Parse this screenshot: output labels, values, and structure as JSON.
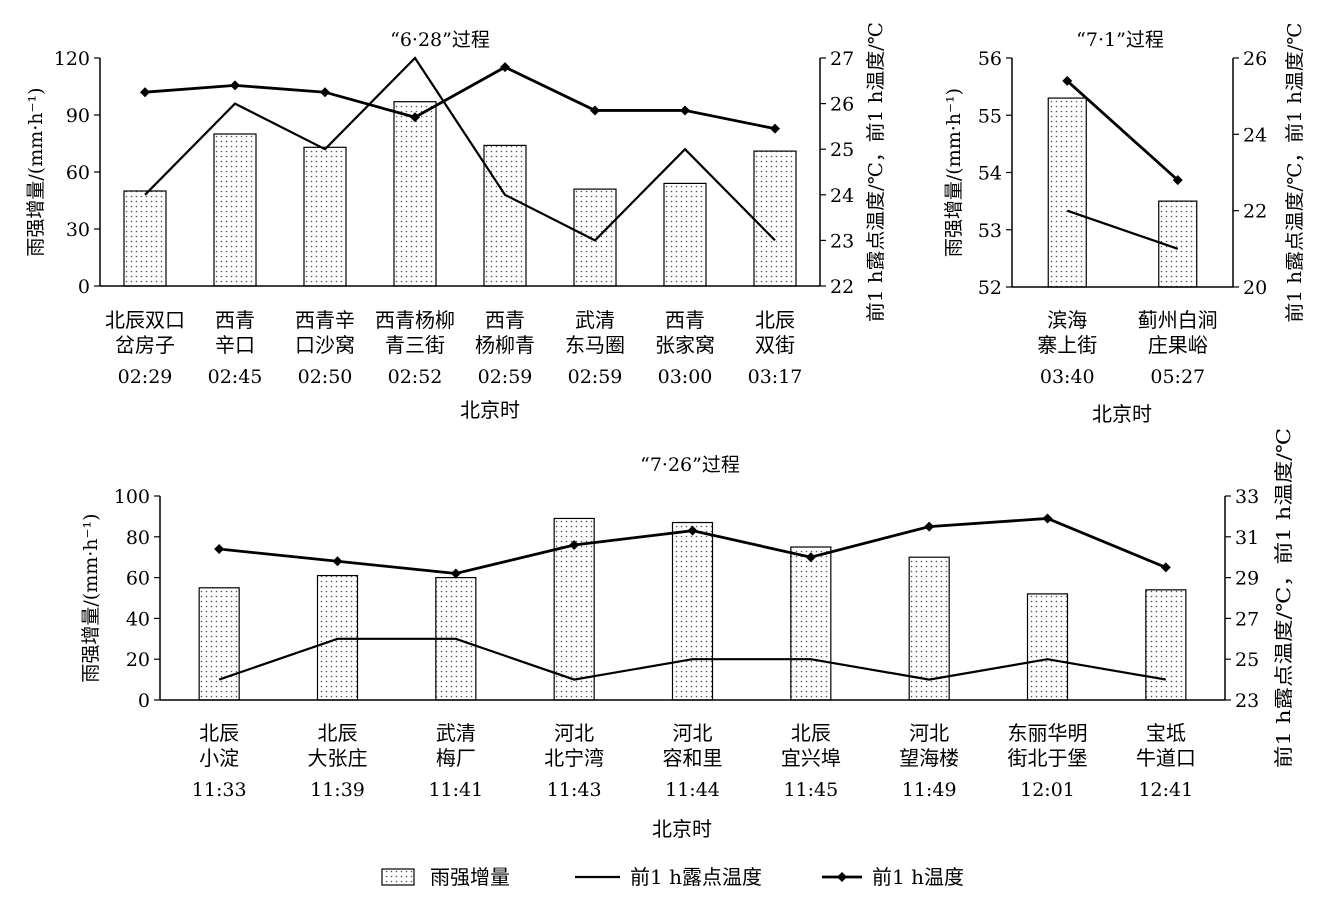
{
  "colors": {
    "axis": "#000000",
    "bar_fill": "#ffffff",
    "bar_dots": "#555555",
    "line": "#000000"
  },
  "legend": {
    "position": "bottom-center",
    "items": [
      {
        "label": "雨强增量",
        "kind": "dotted-bar"
      },
      {
        "label": "前1 h露点温度",
        "kind": "line"
      },
      {
        "label": "前1 h温度",
        "kind": "line-diamond"
      }
    ]
  },
  "chart_data": [
    {
      "type": "bar",
      "title": "“6·28”过程",
      "xlabel": "北京时",
      "ylabel": "雨强增量/(mm·h⁻¹)",
      "y2label": "前1 h露点温度/℃，前1 h温度/℃",
      "ylim": [
        0,
        120
      ],
      "yticks": [
        "0",
        "30",
        "60",
        "90",
        "120"
      ],
      "y2lim": [
        22,
        27
      ],
      "y2ticks": [
        "22",
        "23",
        "24",
        "25",
        "26",
        "27"
      ],
      "categories": [
        {
          "line1": "北辰双口",
          "line2": "岔房子",
          "time": "02:29"
        },
        {
          "line1": "西青",
          "line2": "辛口",
          "time": "02:45"
        },
        {
          "line1": "西青辛",
          "line2": "口沙窝",
          "time": "02:50"
        },
        {
          "line1": "西青杨柳",
          "line2": "青三街",
          "time": "02:52"
        },
        {
          "line1": "西青",
          "line2": "杨柳青",
          "time": "02:59"
        },
        {
          "line1": "武清",
          "line2": "东马圈",
          "time": "02:59"
        },
        {
          "line1": "西青",
          "line2": "张家窝",
          "time": "03:00"
        },
        {
          "line1": "北辰",
          "line2": "双街",
          "time": "03:17"
        }
      ],
      "series": [
        {
          "name": "雨强增量",
          "axis": "left",
          "style": "bar",
          "values": [
            50,
            80,
            73,
            97,
            74,
            51,
            54,
            71
          ]
        },
        {
          "name": "前1 h露点温度",
          "axis": "right",
          "style": "line",
          "values": [
            24,
            26,
            25,
            27,
            24,
            23,
            25,
            23
          ]
        },
        {
          "name": "前1 h温度",
          "axis": "right",
          "style": "line-diamond",
          "values": [
            26.25,
            26.4,
            26.25,
            25.7,
            26.8,
            25.85,
            25.85,
            25.45
          ]
        }
      ]
    },
    {
      "type": "bar",
      "title": "“7·1”过程",
      "xlabel": "北京时",
      "ylabel": "雨强增量/(mm·h⁻¹)",
      "y2label": "前1 h露点温度/℃，前1 h温度/℃",
      "ylim": [
        52,
        56
      ],
      "yticks": [
        "52",
        "53",
        "54",
        "55",
        "56"
      ],
      "y2lim": [
        20,
        26
      ],
      "y2ticks": [
        "20",
        "22",
        "24",
        "26"
      ],
      "categories": [
        {
          "line1": "滨海",
          "line2": "寨上街",
          "time": "03:40"
        },
        {
          "line1": "蓟州白涧",
          "line2": "庄果峪",
          "time": "05:27"
        }
      ],
      "series": [
        {
          "name": "雨强增量",
          "axis": "left",
          "style": "bar",
          "values": [
            55.3,
            53.5
          ]
        },
        {
          "name": "前1 h露点温度",
          "axis": "right",
          "style": "line",
          "values": [
            22,
            21
          ]
        },
        {
          "name": "前1 h温度",
          "axis": "right",
          "style": "line-diamond",
          "values": [
            25.4,
            22.8
          ]
        }
      ]
    },
    {
      "type": "bar",
      "title": "“7·26”过程",
      "xlabel": "北京时",
      "ylabel": "雨强增量/(mm·h⁻¹)",
      "y2label": "前1 h露点温度/℃，前1 h温度/℃",
      "ylim": [
        0,
        100
      ],
      "yticks": [
        "0",
        "20",
        "40",
        "60",
        "80",
        "100"
      ],
      "y2lim": [
        23,
        33
      ],
      "y2ticks": [
        "23",
        "25",
        "27",
        "29",
        "31",
        "33"
      ],
      "categories": [
        {
          "line1": "北辰",
          "line2": "小淀",
          "time": "11:33"
        },
        {
          "line1": "北辰",
          "line2": "大张庄",
          "time": "11:39"
        },
        {
          "line1": "武清",
          "line2": "梅厂",
          "time": "11:41"
        },
        {
          "line1": "河北",
          "line2": "北宁湾",
          "time": "11:43"
        },
        {
          "line1": "河北",
          "line2": "容和里",
          "time": "11:44"
        },
        {
          "line1": "北辰",
          "line2": "宜兴埠",
          "time": "11:45"
        },
        {
          "line1": "河北",
          "line2": "望海楼",
          "time": "11:49"
        },
        {
          "line1": "东丽华明",
          "line2": "街北于堡",
          "time": "12:01"
        },
        {
          "line1": "宝坻",
          "line2": "牛道口",
          "time": "12:41"
        }
      ],
      "series": [
        {
          "name": "雨强增量",
          "axis": "left",
          "style": "bar",
          "values": [
            55,
            61,
            60,
            89,
            87,
            75,
            70,
            52,
            54
          ]
        },
        {
          "name": "前1 h露点温度",
          "axis": "right",
          "style": "line",
          "values": [
            24,
            26,
            26,
            24,
            25,
            25,
            24,
            25,
            24
          ]
        },
        {
          "name": "前1 h温度",
          "axis": "right",
          "style": "line-diamond",
          "values": [
            30.4,
            29.8,
            29.2,
            30.6,
            31.3,
            30,
            31.5,
            31.9,
            29.5
          ]
        }
      ]
    }
  ]
}
